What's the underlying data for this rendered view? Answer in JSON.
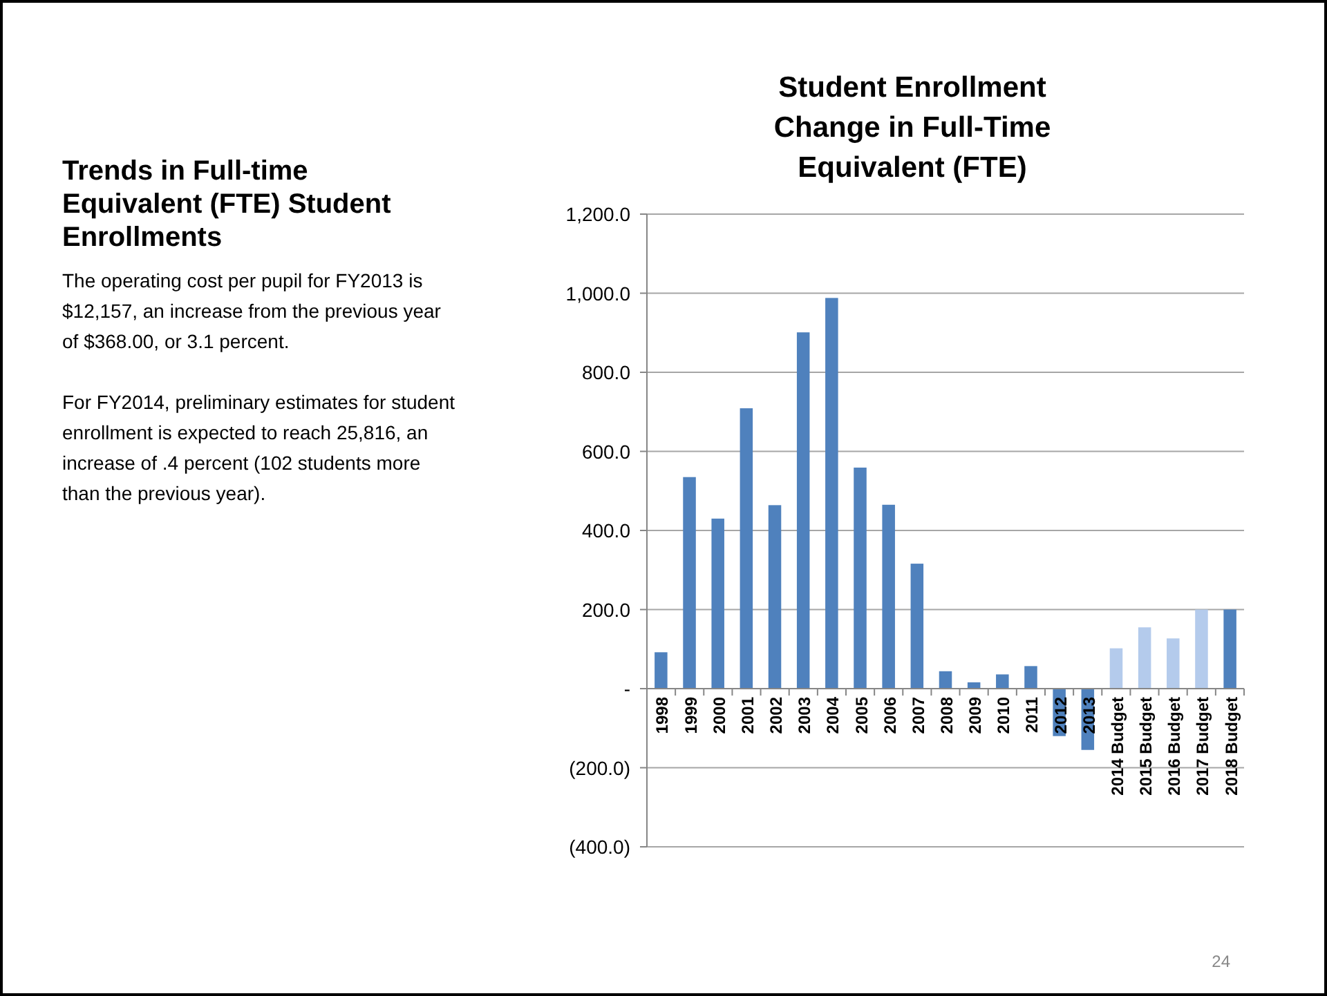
{
  "chart_data": {
    "type": "bar",
    "title": "Student Enrollment",
    "subtitle": "Change in Full-Time Equivalent (FTE)",
    "categories": [
      "1998",
      "1999",
      "2000",
      "2001",
      "2002",
      "2003",
      "2004",
      "2005",
      "2006",
      "2007",
      "2008",
      "2009",
      "2010",
      "2011",
      "2012",
      "2013",
      "2014 Budget",
      "2015 Budget",
      "2016 Budget",
      "2017 Budget",
      "2018 Budget"
    ],
    "values": [
      92,
      535,
      430,
      709,
      464,
      901,
      988,
      559,
      465,
      316,
      44,
      16,
      36,
      57,
      -120,
      -155,
      102,
      155,
      127,
      200,
      200
    ],
    "colors": [
      "#4f81bd",
      "#4f81bd",
      "#4f81bd",
      "#4f81bd",
      "#4f81bd",
      "#4f81bd",
      "#4f81bd",
      "#4f81bd",
      "#4f81bd",
      "#4f81bd",
      "#4f81bd",
      "#4f81bd",
      "#4f81bd",
      "#4f81bd",
      "#4f81bd",
      "#4f81bd",
      "#b4cbec",
      "#b4cbec",
      "#b4cbec",
      "#b4cbec",
      "#4f81bd"
    ],
    "ylim": [
      -400,
      1200
    ],
    "yticks": [
      {
        "value": -400,
        "label": "(400.0)"
      },
      {
        "value": -200,
        "label": "(200.0)"
      },
      {
        "value": 0,
        "label": "-"
      },
      {
        "value": 200,
        "label": "200.0"
      },
      {
        "value": 400,
        "label": "400.0"
      },
      {
        "value": 600,
        "label": "600.0"
      },
      {
        "value": 800,
        "label": "800.0"
      },
      {
        "value": 1000,
        "label": "1,000.0"
      },
      {
        "value": 1200,
        "label": "1,200.0"
      }
    ],
    "grid": "y",
    "annotations": [
      "Trends in Full-time Equivalent (FTE) Student Enrollments",
      "The operating cost per pupil for FY2013 is $12,157, an increase from the previous year of $368.00, or 3.1 percent.",
      "For FY2014, preliminary estimates for student enrollment is expected to reach 25,816, an increase of .4 percent (102 students more than the previous year).",
      "24"
    ]
  }
}
